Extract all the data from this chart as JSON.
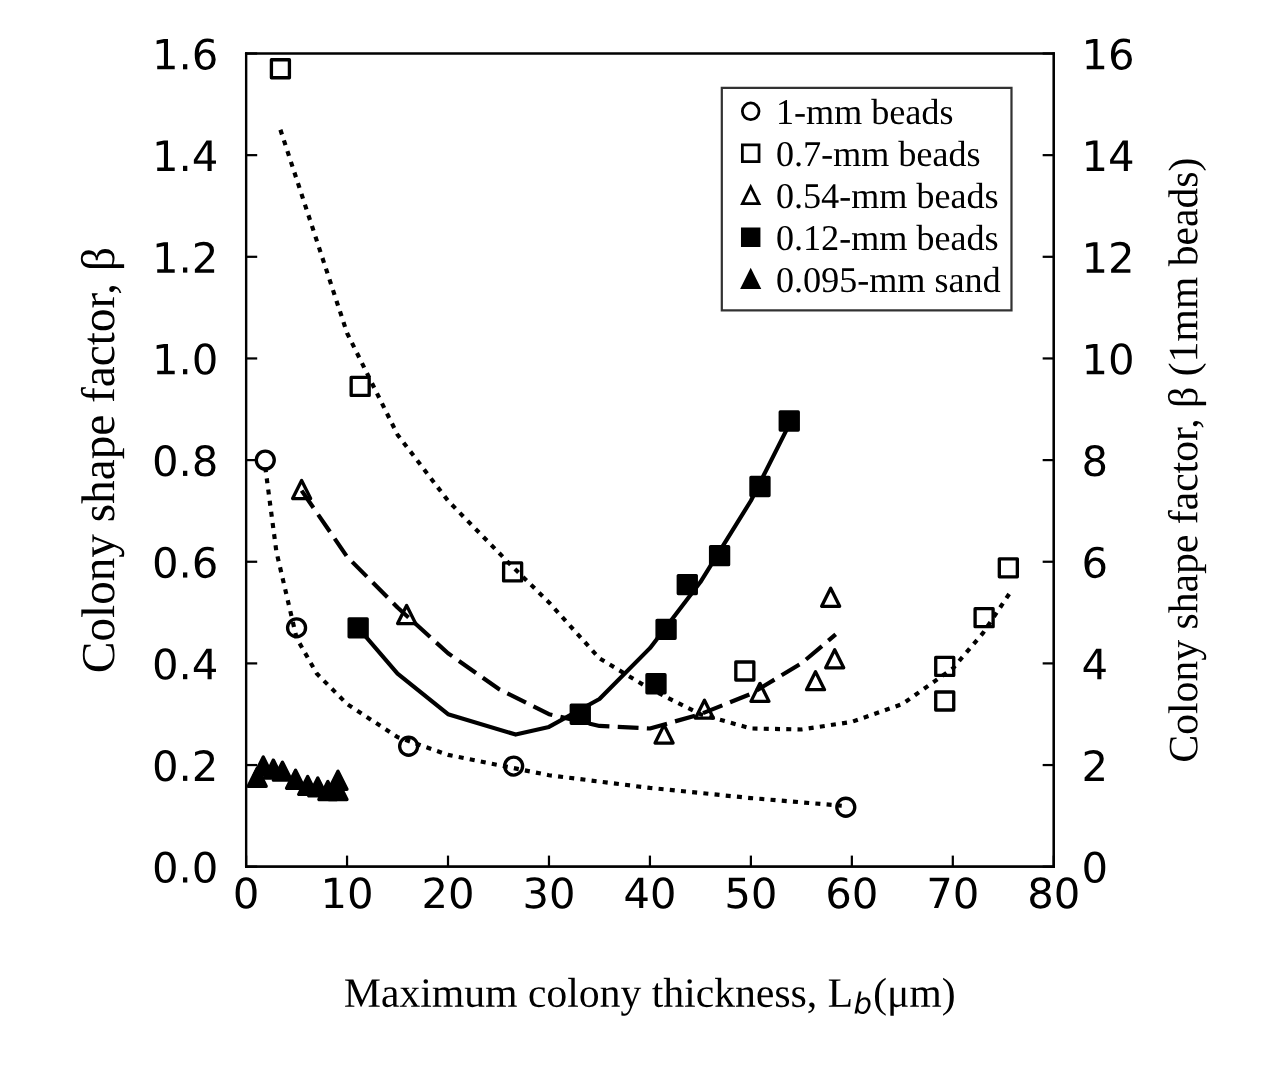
{
  "chart_data": {
    "type": "scatter",
    "xlabel": "Maximum colony thickness, L$_{b}$(μm)",
    "ylabel": "Colony shape factor, β",
    "y2label": "Colony shape factor, β (1mm beads)",
    "xlim": [
      0,
      80
    ],
    "xticks": [
      0,
      10,
      20,
      30,
      40,
      50,
      60,
      70,
      80
    ],
    "ylim": [
      0,
      1.6
    ],
    "yticks": [
      {
        "value": 0,
        "label": "0.0"
      },
      {
        "value": 0.2,
        "label": "0.2"
      },
      {
        "value": 0.4,
        "label": "0.4"
      },
      {
        "value": 0.6,
        "label": "0.6"
      },
      {
        "value": 0.8,
        "label": "0.8"
      },
      {
        "value": 1.0,
        "label": "1.0"
      },
      {
        "value": 1.2,
        "label": "1.2"
      },
      {
        "value": 1.4,
        "label": "1.4"
      },
      {
        "value": 1.6,
        "label": "1.6"
      }
    ],
    "y2lim": [
      0,
      16
    ],
    "y2ticks": [
      0,
      2,
      4,
      6,
      8,
      10,
      12,
      14,
      16
    ],
    "grid": false,
    "legend": "top right",
    "series": [
      {
        "name": "1-mm beads",
        "marker": "circle",
        "color": "#000000",
        "axis": "y2",
        "x": [
          1.9,
          5.0,
          16.1,
          26.5,
          59.4
        ],
        "values": [
          8.0,
          4.7,
          2.37,
          1.98,
          1.17
        ]
      },
      {
        "name": "0.7-mm beads",
        "marker": "square",
        "color": "#000000",
        "x": [
          3.4,
          11.3,
          26.4,
          49.4,
          69.2,
          69.2,
          73.1,
          75.5
        ],
        "values": [
          1.57,
          0.945,
          0.58,
          0.385,
          0.394,
          0.326,
          0.49,
          0.588
        ]
      },
      {
        "name": "0.54-mm beads",
        "marker": "triangle",
        "color": "#000000",
        "x": [
          5.5,
          15.9,
          41.4,
          45.4,
          50.9,
          56.4,
          58.3,
          57.9
        ],
        "values": [
          0.742,
          0.496,
          0.261,
          0.31,
          0.343,
          0.366,
          0.409,
          0.53
        ]
      },
      {
        "name": "0.12-mm beads",
        "marker": "square",
        "color": "#000000",
        "x": [
          11.1,
          33.1,
          40.6,
          41.6,
          43.7,
          46.9,
          50.9,
          53.8
        ],
        "values": [
          0.47,
          0.3,
          0.36,
          0.467,
          0.555,
          0.612,
          0.748,
          0.877
        ]
      },
      {
        "name": "0.095-mm sand",
        "marker": "triangle",
        "color": "#000000",
        "x": [
          1.1,
          1.7,
          2.7,
          3.6,
          4.9,
          6.1,
          7.1,
          8.1,
          9.1,
          9.1
        ],
        "values": [
          0.176,
          0.198,
          0.192,
          0.188,
          0.172,
          0.16,
          0.157,
          0.15,
          0.17,
          0.15
        ]
      },
      {
        "type": "line",
        "line_style": "dotted",
        "color": "#000000",
        "axis": "y2",
        "x": [
          1.9,
          3,
          5,
          7,
          10,
          15,
          20,
          30,
          40,
          50,
          59
        ],
        "values": [
          7.86,
          6.2,
          4.5,
          3.8,
          3.2,
          2.55,
          2.2,
          1.8,
          1.55,
          1.35,
          1.2
        ]
      },
      {
        "type": "line",
        "line_style": "dotted",
        "color": "#000000",
        "x": [
          3.4,
          10,
          15,
          20,
          26.4,
          30,
          35,
          40,
          45,
          50,
          55,
          60,
          65,
          70,
          73,
          75.7
        ],
        "values": [
          1.45,
          1.05,
          0.85,
          0.72,
          0.59,
          0.52,
          0.41,
          0.35,
          0.3,
          0.272,
          0.27,
          0.285,
          0.32,
          0.39,
          0.46,
          0.54
        ]
      },
      {
        "type": "line",
        "line_style": "dashed",
        "color": "#000000",
        "x": [
          5.5,
          10,
          15,
          20,
          25,
          30,
          35,
          40,
          45,
          50,
          55,
          58.4
        ],
        "values": [
          0.74,
          0.61,
          0.51,
          0.42,
          0.35,
          0.3,
          0.277,
          0.272,
          0.3,
          0.34,
          0.4,
          0.457
        ]
      },
      {
        "type": "line",
        "line_style": "solid",
        "color": "#000000",
        "x": [
          11.1,
          15,
          20,
          26.7,
          30,
          35,
          40,
          45,
          50,
          53.8
        ],
        "values": [
          0.47,
          0.38,
          0.3,
          0.26,
          0.275,
          0.33,
          0.43,
          0.56,
          0.72,
          0.87
        ]
      }
    ]
  }
}
